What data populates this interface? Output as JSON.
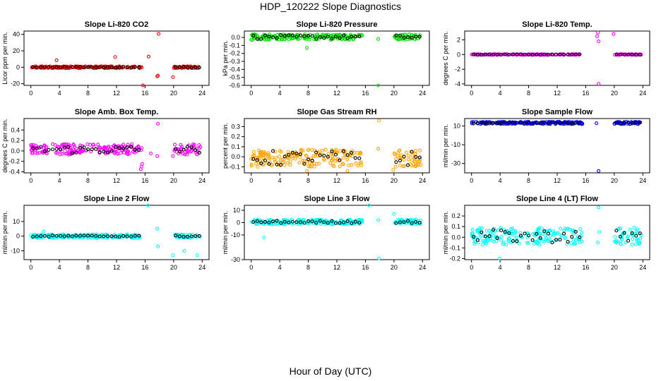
{
  "title": "HDP_120222  Slope Diagnostics",
  "xlabel": "Hour of Day (UTC)",
  "colors": {
    "red": "#ff0000",
    "green": "#00dd00",
    "magenta": "#ff00ff",
    "orange": "#ffa500",
    "blue": "#0000ff",
    "cyan": "#00ffff",
    "black": "#000000"
  },
  "chart_data": [
    {
      "type": "scatter",
      "title": "Slope Li-820 CO2",
      "ylabel": "Licor ppm per min.",
      "xlim": [
        0,
        24
      ],
      "xticks": [
        "0",
        "4",
        "8",
        "12",
        "16",
        "20",
        "24"
      ],
      "ylim": [
        -22,
        44
      ],
      "yticks": [
        40,
        20,
        0,
        -20
      ],
      "ytick_labels": [
        "40",
        "20",
        "0",
        "-20"
      ],
      "color": "#ff0000",
      "band_low": -1.2,
      "band_high": 1.2,
      "black_low": -0.6,
      "black_high": 0.6,
      "outliers": [
        [
          3.6,
          8.5
        ],
        [
          11.8,
          12.5
        ],
        [
          15.7,
          -22
        ],
        [
          16.5,
          13
        ],
        [
          17.7,
          -11
        ],
        [
          17.8,
          -10
        ],
        [
          17.9,
          40.5
        ],
        [
          19.9,
          -12
        ]
      ]
    },
    {
      "type": "scatter",
      "title": "Slope Li-820 Pressure",
      "ylabel": "kPa per min.",
      "xlim": [
        0,
        24
      ],
      "xticks": [
        "0",
        "4",
        "8",
        "12",
        "16",
        "20",
        "24"
      ],
      "ylim": [
        -0.6,
        0.08
      ],
      "yticks": [
        0.0,
        -0.1,
        -0.2,
        -0.3,
        -0.4,
        -0.5,
        -0.6
      ],
      "ytick_labels": [
        "0.0",
        "-0.1",
        "-0.2",
        "-0.3",
        "-0.4",
        "-0.5",
        "-0.6"
      ],
      "color": "#00dd00",
      "band_low": -0.03,
      "band_high": 0.04,
      "black_low": -0.02,
      "black_high": 0.03,
      "outliers": [
        [
          7.8,
          -0.13
        ],
        [
          17.8,
          -0.6
        ],
        [
          17.8,
          -0.02
        ]
      ]
    },
    {
      "type": "scatter",
      "title": "Slope Li-820 Temp.",
      "ylabel": "degrees C per min.",
      "xlim": [
        0,
        24
      ],
      "xticks": [
        "0",
        "4",
        "8",
        "12",
        "16",
        "20",
        "24"
      ],
      "ylim": [
        -4.2,
        3.2
      ],
      "yticks": [
        2,
        0,
        -2,
        -4
      ],
      "ytick_labels": [
        "2",
        "0",
        "-2",
        "-4"
      ],
      "color": "#ff00ff",
      "band_low": -0.05,
      "band_high": 0.05,
      "black_low": -0.03,
      "black_high": 0.03,
      "outliers": [
        [
          17.6,
          2.5
        ],
        [
          17.7,
          3.0
        ],
        [
          17.8,
          1.8
        ],
        [
          17.8,
          -4.0
        ],
        [
          19.9,
          2.8
        ]
      ]
    },
    {
      "type": "scatter",
      "title": "Slope Amb. Box Temp.",
      "ylabel": "degrees C per min.",
      "xlim": [
        0,
        24
      ],
      "xticks": [
        "0",
        "4",
        "8",
        "12",
        "16",
        "20",
        "24"
      ],
      "ylim": [
        -0.42,
        0.62
      ],
      "yticks": [
        0.4,
        0.2,
        0.0,
        -0.2,
        -0.4
      ],
      "ytick_labels": [
        "0.4",
        "0.2",
        "0.0",
        "-0.2",
        "-0.4"
      ],
      "color": "#ff00ff",
      "band_low": -0.07,
      "band_high": 0.13,
      "black_low": -0.05,
      "black_high": 0.1,
      "outliers": [
        [
          15.4,
          -0.35
        ],
        [
          15.5,
          -0.3
        ],
        [
          15.6,
          -0.25
        ],
        [
          16.8,
          -0.05
        ],
        [
          17.8,
          0.52
        ],
        [
          17.7,
          -0.1
        ],
        [
          19.9,
          -0.1
        ]
      ]
    },
    {
      "type": "scatter",
      "title": "Slope Gas Stream RH",
      "ylabel": "percent per min.",
      "xlim": [
        0,
        24
      ],
      "xticks": [
        "0",
        "4",
        "8",
        "12",
        "16",
        "20",
        "24"
      ],
      "ylim": [
        -0.16,
        0.38
      ],
      "yticks": [
        0.3,
        0.2,
        0.1,
        0.0,
        -0.1
      ],
      "ytick_labels": [
        "0.3",
        "0.2",
        "0.1",
        "0.0",
        "-0.1"
      ],
      "color": "#ffa500",
      "band_low": -0.1,
      "band_high": 0.07,
      "black_low": -0.09,
      "black_high": 0.06,
      "outliers": [
        [
          7.8,
          -0.14
        ],
        [
          13.5,
          -0.14
        ],
        [
          17.9,
          0.36
        ],
        [
          17.8,
          0.08
        ],
        [
          19.9,
          -0.13
        ]
      ]
    },
    {
      "type": "scatter",
      "title": "Slope Sample Flow",
      "ylabel": "ml/min per min.",
      "xlim": [
        0,
        24
      ],
      "xticks": [
        "0",
        "4",
        "8",
        "12",
        "16",
        "20",
        "24"
      ],
      "ylim": [
        -40,
        18
      ],
      "yticks": [
        10,
        -10,
        -30
      ],
      "ytick_labels": [
        "10",
        "-10",
        "-30"
      ],
      "color": "#0000ff",
      "band_low": 12,
      "band_high": 14.5,
      "black_low": 12.5,
      "black_high": 14,
      "outliers": [
        [
          17.8,
          -38
        ],
        [
          15.5,
          13
        ],
        [
          17.5,
          13
        ]
      ]
    },
    {
      "type": "scatter",
      "title": "Slope Line 2 Flow",
      "ylabel": "ml/min per min.",
      "xlim": [
        0,
        24
      ],
      "xticks": [
        "0",
        "4",
        "8",
        "12",
        "16",
        "20",
        "24"
      ],
      "ylim": [
        -16,
        21
      ],
      "yticks": [
        10,
        0,
        -10
      ],
      "ytick_labels": [
        "10",
        "0",
        "-10"
      ],
      "color": "#00ffff",
      "band_low": -1.2,
      "band_high": 1.2,
      "black_low": -0.5,
      "black_high": 0.5,
      "outliers": [
        [
          1.8,
          3
        ],
        [
          16.4,
          21
        ],
        [
          17.7,
          5
        ],
        [
          17.8,
          -7
        ],
        [
          19.9,
          -13
        ],
        [
          21.5,
          -10
        ],
        [
          23.3,
          -13
        ]
      ]
    },
    {
      "type": "scatter",
      "title": "Slope Line 3 Flow",
      "ylabel": "ml/min per min.",
      "xlim": [
        0,
        24
      ],
      "xticks": [
        "0",
        "4",
        "8",
        "12",
        "16",
        "20",
        "24"
      ],
      "ylim": [
        -30,
        14
      ],
      "yticks": [
        10,
        0,
        -10,
        -30
      ],
      "ytick_labels": [
        "10",
        "0",
        "-10",
        "-30"
      ],
      "color": "#00ffff",
      "band_low": -1.5,
      "band_high": 2.5,
      "black_low": -0.5,
      "black_high": 1.5,
      "outliers": [
        [
          1.8,
          -12
        ],
        [
          16.5,
          14
        ],
        [
          17.8,
          2
        ],
        [
          17.9,
          -29
        ],
        [
          20,
          7
        ]
      ]
    },
    {
      "type": "scatter",
      "title": "Slope Line 4 (LT) Flow",
      "ylabel": "ml/min per min.",
      "xlim": [
        0,
        24
      ],
      "xticks": [
        "0",
        "4",
        "8",
        "12",
        "16",
        "20",
        "24"
      ],
      "ylim": [
        -0.21,
        0.3
      ],
      "yticks": [
        0.2,
        0.1,
        0.0,
        -0.1,
        -0.2
      ],
      "ytick_labels": [
        "0.2",
        "0.1",
        "0.0",
        "-0.1",
        "-0.2"
      ],
      "color": "#00ffff",
      "band_low": -0.07,
      "band_high": 0.09,
      "black_low": -0.05,
      "black_high": 0.07,
      "outliers": [
        [
          3.9,
          -0.2
        ],
        [
          17.8,
          0.28
        ],
        [
          17.7,
          -0.05
        ],
        [
          17.9,
          0.05
        ]
      ]
    }
  ]
}
